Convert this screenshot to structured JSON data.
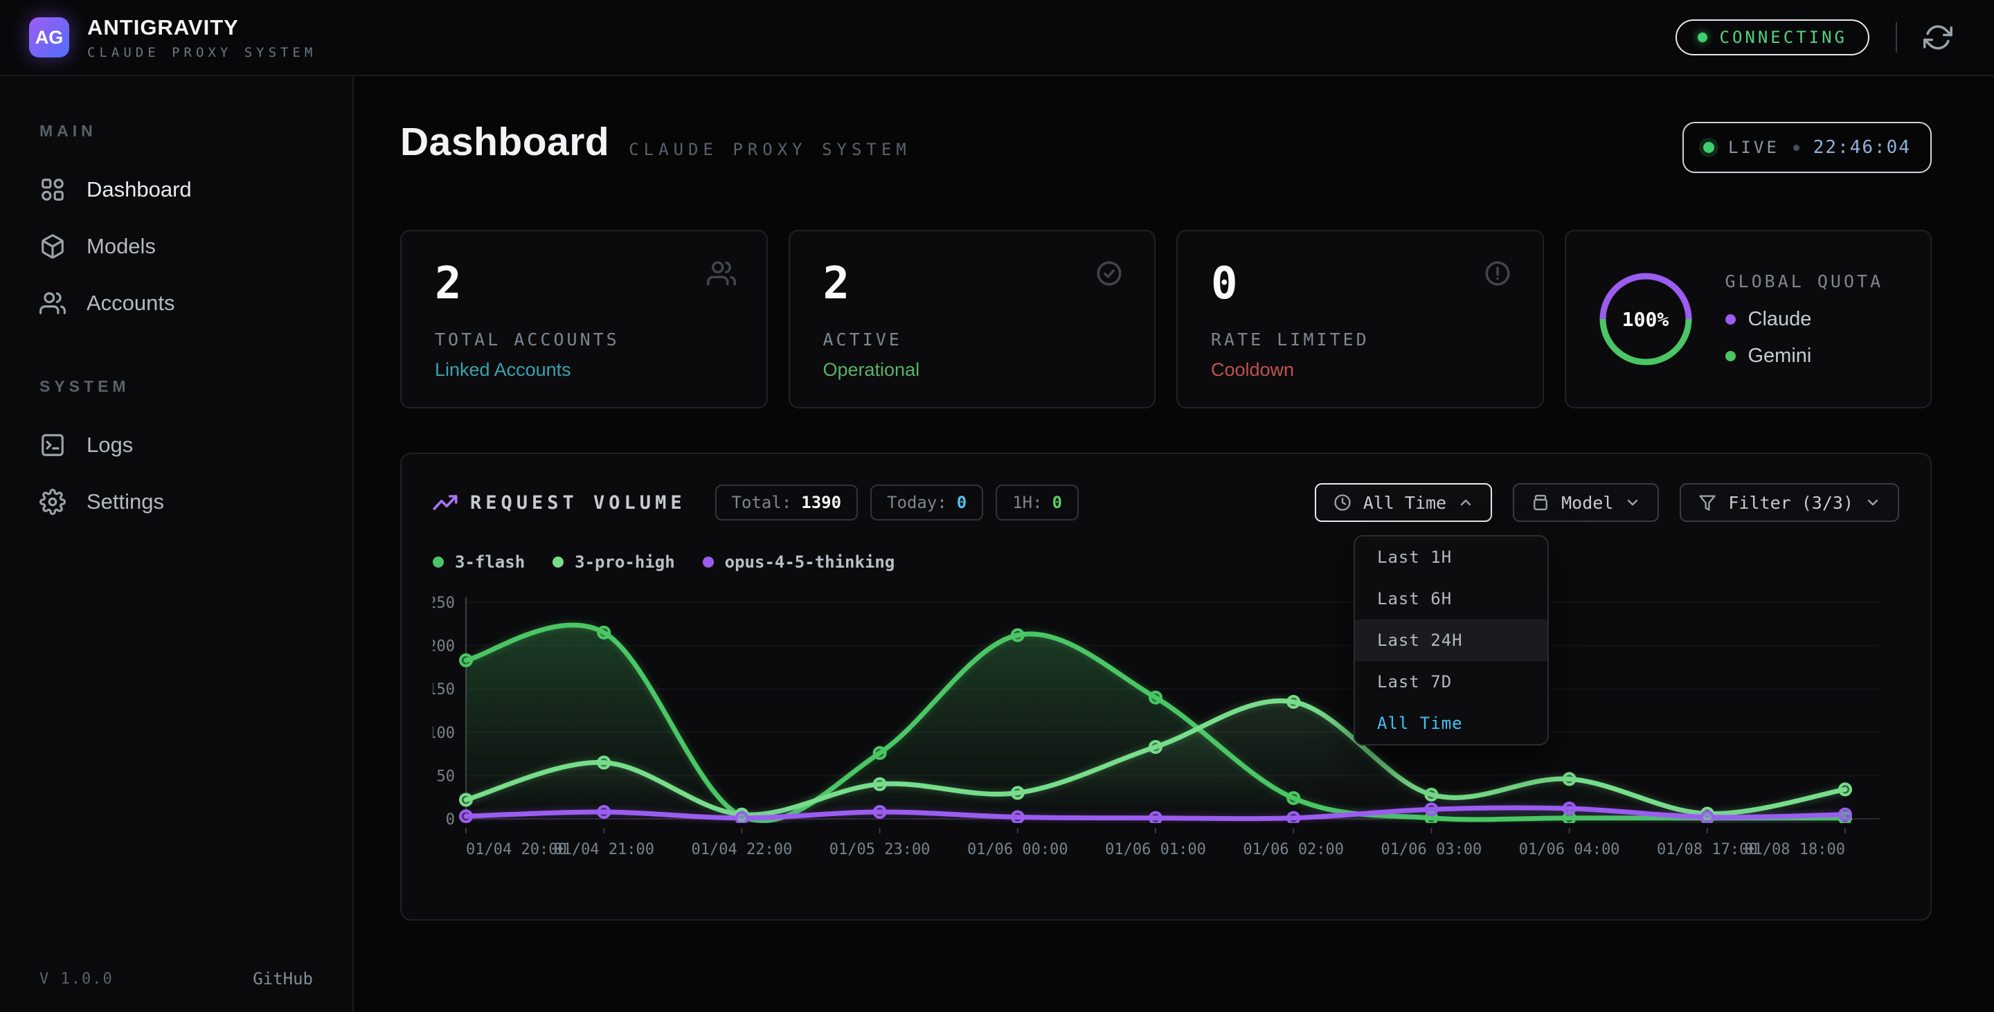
{
  "topbar": {
    "logo_text": "AG",
    "title": "ANTIGRAVITY",
    "subtitle": "CLAUDE PROXY SYSTEM",
    "connection_status": "CONNECTING",
    "connection_color": "#4fd27d"
  },
  "sidebar": {
    "sections": [
      {
        "label": "MAIN",
        "items": [
          {
            "label": "Dashboard"
          },
          {
            "label": "Models"
          },
          {
            "label": "Accounts"
          }
        ]
      },
      {
        "label": "SYSTEM",
        "items": [
          {
            "label": "Logs"
          },
          {
            "label": "Settings"
          }
        ]
      }
    ],
    "version": "V 1.0.0",
    "github_link": "GitHub"
  },
  "page_header": {
    "title": "Dashboard",
    "subtitle": "CLAUDE PROXY SYSTEM",
    "live_label": "LIVE",
    "live_time": "22:46:04",
    "live_time_color": "#8fb2d9"
  },
  "stat_cards": [
    {
      "value": "2",
      "label": "TOTAL ACCOUNTS",
      "status": "Linked Accounts",
      "status_color": "#3aa3ad"
    },
    {
      "value": "2",
      "label": "ACTIVE",
      "status": "Operational",
      "status_color": "#57b36a"
    },
    {
      "value": "0",
      "label": "RATE LIMITED",
      "status": "Cooldown",
      "status_color": "#c05252"
    }
  ],
  "quota_card": {
    "label": "GLOBAL QUOTA",
    "percent": "100%",
    "ring_top_color": "#9b5df0",
    "ring_bottom_color": "#4bc665",
    "items": [
      {
        "label": "Claude",
        "color": "#9b5df0"
      },
      {
        "label": "Gemini",
        "color": "#4bc665"
      }
    ]
  },
  "chart_panel": {
    "title": "REQUEST VOLUME",
    "title_icon_color": "#a974f8",
    "chips": [
      {
        "label": "Total:",
        "value": "1390",
        "value_color": "#f2f4f6"
      },
      {
        "label": "Today:",
        "value": "0",
        "value_color": "#4cc3ea"
      },
      {
        "label": "1H:",
        "value": "0",
        "value_color": "#57d364"
      }
    ],
    "time_button": {
      "label": "All Time"
    },
    "model_button": {
      "label": "Model"
    },
    "filter_button": {
      "label": "Filter (3/3)"
    },
    "menu": {
      "items": [
        "Last 1H",
        "Last 6H",
        "Last 24H",
        "Last 7D",
        "All Time"
      ],
      "highlighted_item": "Last 24H",
      "selected_item": "All Time",
      "selected_color": "#3fc1f2"
    }
  },
  "chart_data": {
    "type": "line",
    "title": "REQUEST VOLUME",
    "xlabel": "",
    "ylabel": "",
    "ylim": [
      0,
      250
    ],
    "yticks": [
      0,
      50,
      100,
      150,
      200,
      250
    ],
    "grid": true,
    "legend_position": "top-left",
    "x_labels": [
      "01/04 20:00",
      "01/04 21:00",
      "01/04 22:00",
      "01/05 23:00",
      "01/06 00:00",
      "01/06 01:00",
      "01/06 02:00",
      "01/06 03:00",
      "01/06 04:00",
      "01/08 17:00",
      "01/08 18:00"
    ],
    "series": [
      {
        "name": "3-flash",
        "color": "#4bc665",
        "fill_opacity": 0.26,
        "values": [
          183,
          215,
          3,
          76,
          212,
          140,
          24,
          1,
          1,
          1,
          1
        ]
      },
      {
        "name": "3-pro-high",
        "color": "#77dd8a",
        "fill_opacity": 0.15,
        "values": [
          22,
          65,
          5,
          40,
          30,
          83,
          135,
          28,
          46,
          6,
          34
        ]
      },
      {
        "name": "opus-4-5-thinking",
        "color": "#9b5df0",
        "fill_opacity": 0.15,
        "values": [
          3,
          8,
          1,
          8,
          2,
          1,
          1,
          11,
          12,
          2,
          5
        ]
      }
    ]
  }
}
